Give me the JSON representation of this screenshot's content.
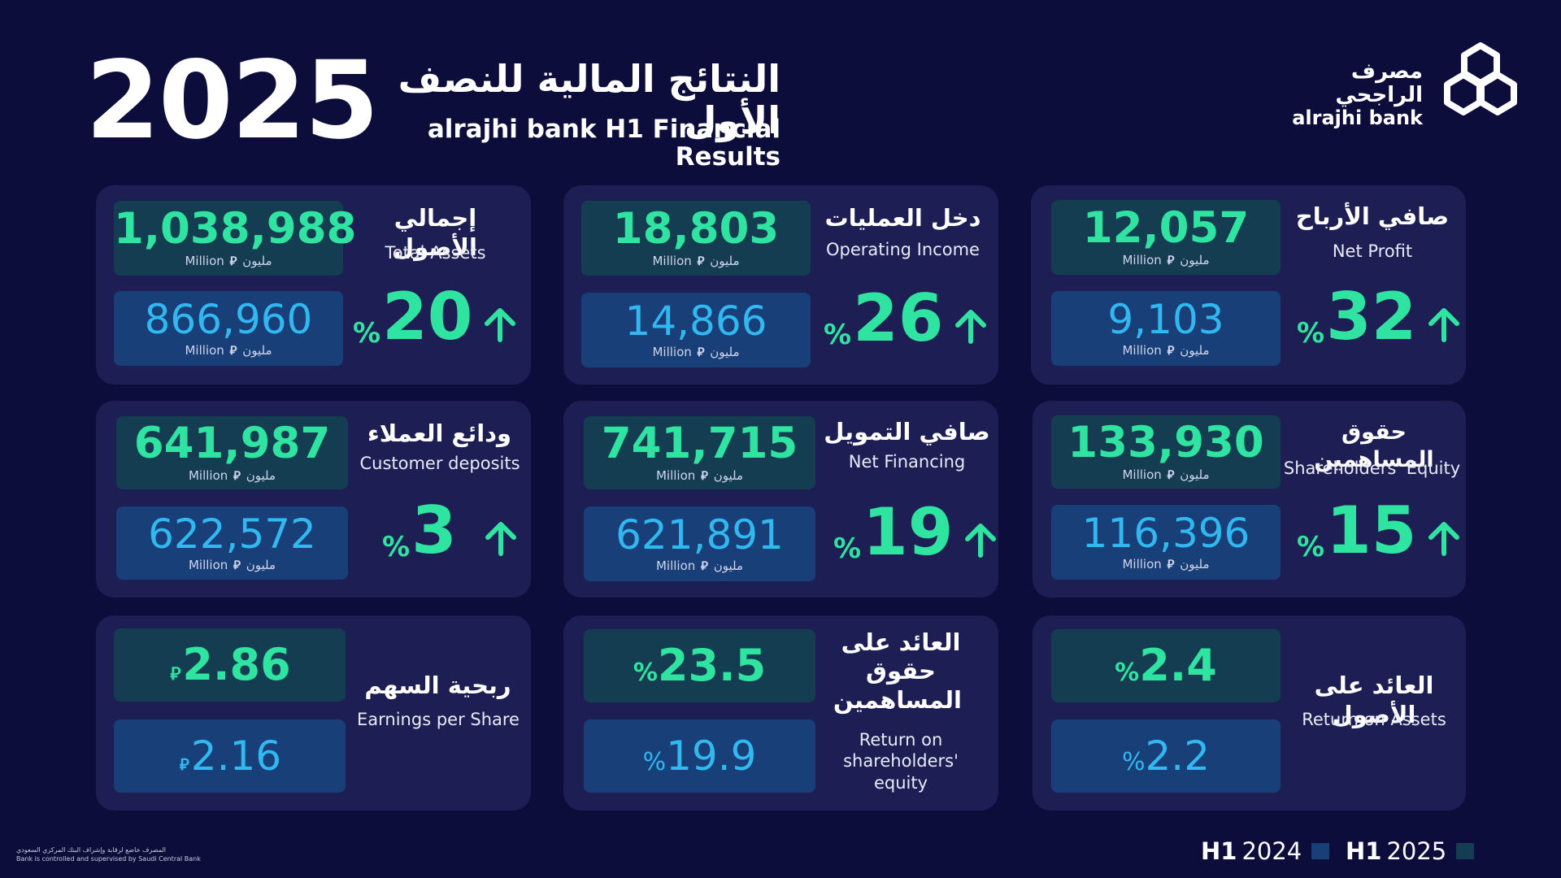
{
  "header": {
    "year": "2025",
    "title_ar": "النتائج المالية للنصف الأول",
    "title_en": "alrajhi bank H1 Financial Results"
  },
  "logo": {
    "name_ar": "مصرف الراجحي",
    "name_en": "alrajhi bank",
    "icon": "alrajhi-logo-mark"
  },
  "units": {
    "million_label": "Million",
    "million_ar": "مليون",
    "currency_symbol": "⃁",
    "percent": "%"
  },
  "colors": {
    "background": "#0c0d3a",
    "card": "#1d1f54",
    "h1_2025_box": "#153d52",
    "h1_2024_box": "#183f78",
    "accent_green": "#2fe3a0",
    "accent_blue": "#31b8f0"
  },
  "cards": {
    "total_assets": {
      "label_ar": "إجمالي الأصول",
      "label_en": "Total Assets",
      "h1_2025": "1,038,988",
      "h1_2024": "866,960",
      "growth": "20"
    },
    "operating_income": {
      "label_ar": "دخل العمليات",
      "label_en": "Operating Income",
      "h1_2025": "18,803",
      "h1_2024": "14,866",
      "growth": "26"
    },
    "net_profit": {
      "label_ar": "صافي الأرباح",
      "label_en": "Net Profit",
      "h1_2025": "12,057",
      "h1_2024": "9,103",
      "growth": "32"
    },
    "customer_deposits": {
      "label_ar": "ودائع العملاء",
      "label_en": "Customer deposits",
      "h1_2025": "641,987",
      "h1_2024": "622,572",
      "growth": "3"
    },
    "net_financing": {
      "label_ar": "صافي التمويل",
      "label_en": "Net Financing",
      "h1_2025": "741,715",
      "h1_2024": "621,891",
      "growth": "19"
    },
    "shareholders_equity": {
      "label_ar": "حقوق المساهمين",
      "label_en": "Shareholders' Equity",
      "h1_2025": "133,930",
      "h1_2024": "116,396",
      "growth": "15"
    },
    "eps": {
      "label_ar": "ربحية السهم",
      "label_en": "Earnings per Share",
      "h1_2025": "2.86",
      "h1_2024": "2.16"
    },
    "roe": {
      "label_ar": "العائد على حقوق المساهمين",
      "label_en": "Return on shareholders' equity",
      "h1_2025": "23.5",
      "h1_2024": "19.9"
    },
    "roa": {
      "label_ar": "العائد على الأصول",
      "label_en": "Return on Assets",
      "h1_2025": "2.4",
      "h1_2024": "2.2"
    }
  },
  "footer": {
    "note_ar": "المصرف خاضع لرقابة وإشراف البنك المركزي السعودي",
    "note_en": "Bank is controlled and supervised by Saudi Central Bank",
    "legend": [
      {
        "prefix": "H1",
        "year": "2024",
        "color": "#183f78"
      },
      {
        "prefix": "H1",
        "year": "2025",
        "color": "#153d52"
      }
    ]
  }
}
